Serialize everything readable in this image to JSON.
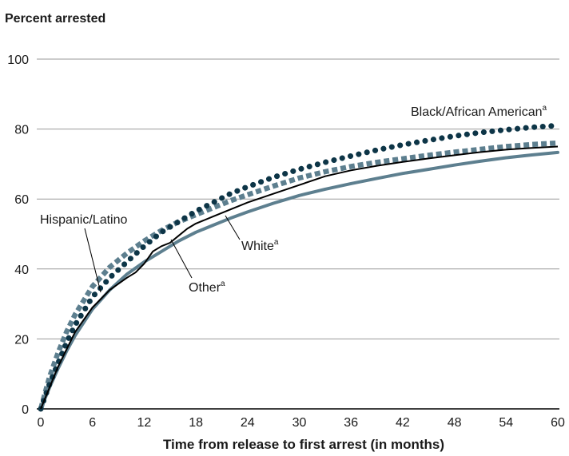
{
  "chart_data": {
    "type": "line",
    "ylabel": "Percent arrested",
    "xlabel": "Time from release to first arrest (in months)",
    "xlim": [
      0,
      60
    ],
    "ylim": [
      0,
      100
    ],
    "xticks": [
      0,
      6,
      12,
      18,
      24,
      30,
      36,
      42,
      48,
      54,
      60
    ],
    "yticks": [
      0,
      20,
      40,
      60,
      80,
      100
    ],
    "grid": "horizontal",
    "series": [
      {
        "name": "Black/African American",
        "footnote": "a",
        "style": "dotted",
        "color": "#0d3547",
        "x": [
          0,
          1,
          2,
          3,
          4,
          6,
          8,
          10,
          12,
          14,
          16,
          18,
          20,
          22,
          24,
          27,
          30,
          33,
          36,
          39,
          42,
          45,
          48,
          51,
          54,
          57,
          60
        ],
        "y": [
          0,
          7,
          13,
          19,
          24,
          32,
          37.5,
          42,
          46.5,
          50.5,
          53.5,
          56.5,
          59,
          61.5,
          63.5,
          66.2,
          68.5,
          70.5,
          72.3,
          74,
          75.5,
          76.8,
          78,
          79,
          79.8,
          80.5,
          81
        ]
      },
      {
        "name": "Hispanic/Latino",
        "style": "dashed",
        "color": "#5d7f8f",
        "x": [
          0,
          1,
          2,
          3,
          4,
          6,
          8,
          10,
          12,
          14,
          16,
          18,
          20,
          22,
          24,
          27,
          30,
          33,
          36,
          39,
          42,
          45,
          48,
          51,
          54,
          57,
          60
        ],
        "y": [
          0,
          9,
          16,
          22,
          27,
          35,
          40.5,
          44.5,
          48,
          51,
          53.5,
          55.5,
          57.5,
          59.5,
          61.2,
          63.7,
          66,
          67.8,
          69.3,
          70.5,
          71.5,
          72.5,
          73.4,
          74.2,
          75,
          75.6,
          76
        ]
      },
      {
        "name": "Other",
        "footnote": "a",
        "style": "solid-thin",
        "color": "#000000",
        "x": [
          0,
          1,
          2,
          3,
          4,
          6,
          8,
          10,
          11,
          12,
          13,
          14,
          15,
          16,
          17,
          18,
          20,
          22,
          24,
          27,
          30,
          33,
          36,
          39,
          42,
          45,
          48,
          51,
          54,
          57,
          60
        ],
        "y": [
          0,
          6,
          12,
          17,
          22,
          29,
          34,
          37.5,
          39,
          41.5,
          45,
          46.5,
          47.5,
          49.5,
          51.5,
          53,
          55,
          57,
          59,
          61.5,
          64,
          66.5,
          68.2,
          69.5,
          70.6,
          71.6,
          72.5,
          73.4,
          74.1,
          74.6,
          75
        ]
      },
      {
        "name": "White",
        "footnote": "a",
        "style": "solid-thick",
        "color": "#5d7f8f",
        "x": [
          0,
          1,
          2,
          3,
          4,
          6,
          8,
          10,
          12,
          14,
          16,
          18,
          20,
          22,
          24,
          27,
          30,
          33,
          36,
          39,
          42,
          45,
          48,
          51,
          54,
          57,
          60
        ],
        "y": [
          0,
          6,
          11.5,
          16.5,
          21,
          28.5,
          34,
          38.5,
          42,
          45,
          48,
          50.5,
          52.5,
          54.5,
          56.3,
          58.8,
          61,
          62.8,
          64.4,
          65.9,
          67.3,
          68.5,
          69.7,
          70.8,
          71.8,
          72.6,
          73.3
        ]
      }
    ]
  }
}
